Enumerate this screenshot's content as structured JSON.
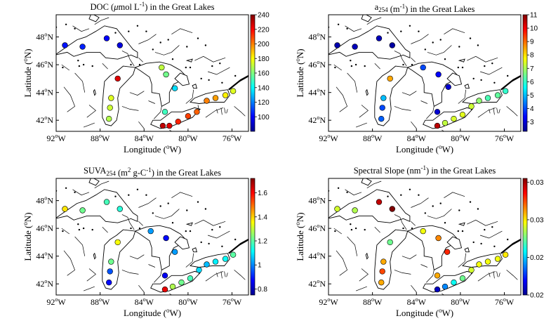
{
  "figure": {
    "panels": [
      {
        "id": "doc",
        "title_main": "DOC (",
        "title_mu": "μ",
        "title_rest": "mol L",
        "title_sup": "-1",
        "title_end": ") in the Great Lakes",
        "colorbar": {
          "min": 80,
          "max": 240,
          "ticks": [
            "240",
            "220",
            "200",
            "180",
            "160",
            "140",
            "120",
            "100"
          ],
          "tick_values": [
            240,
            220,
            200,
            180,
            160,
            140,
            120,
            100
          ]
        },
        "points": [
          {
            "lon": -91.2,
            "lat": 47.4,
            "value": 103
          },
          {
            "lon": -89.6,
            "lat": 47.3,
            "value": 105
          },
          {
            "lon": -87.4,
            "lat": 47.9,
            "value": 100
          },
          {
            "lon": -86.2,
            "lat": 47.4,
            "value": 95
          },
          {
            "lon": -82.4,
            "lat": 45.8,
            "value": 170
          },
          {
            "lon": -82.0,
            "lat": 45.3,
            "value": 158
          },
          {
            "lon": -86.4,
            "lat": 45.0,
            "value": 225
          },
          {
            "lon": -87.0,
            "lat": 43.6,
            "value": 175
          },
          {
            "lon": -87.1,
            "lat": 42.9,
            "value": 172
          },
          {
            "lon": -87.2,
            "lat": 42.1,
            "value": 168
          },
          {
            "lon": -81.2,
            "lat": 44.3,
            "value": 135
          },
          {
            "lon": -82.1,
            "lat": 42.6,
            "value": 150
          },
          {
            "lon": -82.3,
            "lat": 41.6,
            "value": 230
          },
          {
            "lon": -81.7,
            "lat": 41.6,
            "value": 225
          },
          {
            "lon": -80.9,
            "lat": 41.9,
            "value": 215
          },
          {
            "lon": -80.0,
            "lat": 42.3,
            "value": 210
          },
          {
            "lon": -79.2,
            "lat": 42.6,
            "value": 205
          },
          {
            "lon": -78.3,
            "lat": 43.4,
            "value": 200
          },
          {
            "lon": -77.5,
            "lat": 43.6,
            "value": 195
          },
          {
            "lon": -76.6,
            "lat": 43.8,
            "value": 182
          },
          {
            "lon": -75.9,
            "lat": 44.1,
            "value": 175
          }
        ]
      },
      {
        "id": "a254",
        "title_main": "a",
        "title_sub": "254",
        "title_rest": " (m",
        "title_sup": "-1",
        "title_end": ") in the Great Lakes",
        "colorbar": {
          "min": 2.3,
          "max": 11,
          "ticks": [
            "11",
            "10",
            "9",
            "8",
            "7",
            "6",
            "5",
            "4",
            "3"
          ],
          "tick_values": [
            11,
            10,
            9,
            8,
            7,
            6,
            5,
            4,
            3
          ]
        },
        "points": [
          {
            "lon": -91.2,
            "lat": 47.4,
            "value": 2.7
          },
          {
            "lon": -89.6,
            "lat": 47.3,
            "value": 2.8
          },
          {
            "lon": -87.4,
            "lat": 47.9,
            "value": 2.8
          },
          {
            "lon": -86.2,
            "lat": 47.4,
            "value": 2.6
          },
          {
            "lon": -83.4,
            "lat": 45.8,
            "value": 4.0
          },
          {
            "lon": -82.0,
            "lat": 45.3,
            "value": 3.4
          },
          {
            "lon": -86.4,
            "lat": 45.0,
            "value": 8.5
          },
          {
            "lon": -87.0,
            "lat": 43.6,
            "value": 5.0
          },
          {
            "lon": -87.1,
            "lat": 42.9,
            "value": 4.0
          },
          {
            "lon": -87.2,
            "lat": 42.1,
            "value": 4.2
          },
          {
            "lon": -81.1,
            "lat": 44.4,
            "value": 3.0
          },
          {
            "lon": -82.1,
            "lat": 42.6,
            "value": 3.0
          },
          {
            "lon": -82.1,
            "lat": 41.6,
            "value": 10.5
          },
          {
            "lon": -81.4,
            "lat": 41.8,
            "value": 7.2
          },
          {
            "lon": -80.6,
            "lat": 42.1,
            "value": 7.4
          },
          {
            "lon": -79.8,
            "lat": 42.4,
            "value": 7.5
          },
          {
            "lon": -79.0,
            "lat": 43.0,
            "value": 7.3
          },
          {
            "lon": -78.3,
            "lat": 43.4,
            "value": 6.8
          },
          {
            "lon": -77.5,
            "lat": 43.6,
            "value": 6.2
          },
          {
            "lon": -76.6,
            "lat": 43.8,
            "value": 6.4
          },
          {
            "lon": -75.9,
            "lat": 44.1,
            "value": 6.0
          }
        ]
      },
      {
        "id": "suva",
        "title_main": "SUVA",
        "title_sub": "254",
        "title_rest": " (m",
        "title_sup": "2",
        "title_end": " g-C",
        "title_sup2": "-1",
        "title_end2": ") in the Great Lakes",
        "colorbar": {
          "min": 0.75,
          "max": 1.72,
          "ticks": [
            "1.6",
            "1.4",
            "1.2",
            "1",
            "0.8"
          ],
          "tick_values": [
            1.6,
            1.4,
            1.2,
            1.0,
            0.8
          ]
        },
        "points": [
          {
            "lon": -91.2,
            "lat": 47.4,
            "value": 1.38
          },
          {
            "lon": -89.6,
            "lat": 47.3,
            "value": 1.22
          },
          {
            "lon": -87.4,
            "lat": 47.9,
            "value": 1.18
          },
          {
            "lon": -86.2,
            "lat": 47.4,
            "value": 1.15
          },
          {
            "lon": -83.4,
            "lat": 45.8,
            "value": 1.02
          },
          {
            "lon": -82.0,
            "lat": 45.3,
            "value": 0.88
          },
          {
            "lon": -86.4,
            "lat": 45.0,
            "value": 1.35
          },
          {
            "lon": -87.0,
            "lat": 43.6,
            "value": 1.22
          },
          {
            "lon": -87.1,
            "lat": 42.9,
            "value": 0.95
          },
          {
            "lon": -87.2,
            "lat": 42.1,
            "value": 0.88
          },
          {
            "lon": -81.2,
            "lat": 44.3,
            "value": 1.02
          },
          {
            "lon": -82.1,
            "lat": 42.6,
            "value": 0.86
          },
          {
            "lon": -82.1,
            "lat": 41.6,
            "value": 1.62
          },
          {
            "lon": -81.4,
            "lat": 41.8,
            "value": 1.28
          },
          {
            "lon": -80.6,
            "lat": 42.1,
            "value": 1.22
          },
          {
            "lon": -79.8,
            "lat": 42.4,
            "value": 1.18
          },
          {
            "lon": -79.0,
            "lat": 43.0,
            "value": 1.08
          },
          {
            "lon": -78.3,
            "lat": 43.4,
            "value": 1.05
          },
          {
            "lon": -77.5,
            "lat": 43.6,
            "value": 1.1
          },
          {
            "lon": -76.6,
            "lat": 43.8,
            "value": 1.12
          },
          {
            "lon": -75.9,
            "lat": 44.1,
            "value": 1.2
          }
        ]
      },
      {
        "id": "slope",
        "title_main": "Spectral Slope (nm",
        "title_sup": "-1",
        "title_end": ") in the Great Lakes",
        "colorbar": {
          "min": 0.02,
          "max": 0.0355,
          "ticks": [
            "0.035",
            "0.03",
            "0.025",
            "0.02"
          ],
          "tick_values": [
            0.035,
            0.03,
            0.025,
            0.02
          ]
        },
        "points": [
          {
            "lon": -91.2,
            "lat": 47.4,
            "value": 0.029
          },
          {
            "lon": -89.6,
            "lat": 47.3,
            "value": 0.0285
          },
          {
            "lon": -87.4,
            "lat": 47.9,
            "value": 0.0345
          },
          {
            "lon": -86.2,
            "lat": 47.4,
            "value": 0.0355
          },
          {
            "lon": -83.4,
            "lat": 45.8,
            "value": 0.0295
          },
          {
            "lon": -82.0,
            "lat": 45.3,
            "value": 0.0315
          },
          {
            "lon": -86.4,
            "lat": 45.0,
            "value": 0.0275
          },
          {
            "lon": -87.0,
            "lat": 43.6,
            "value": 0.031
          },
          {
            "lon": -87.1,
            "lat": 42.9,
            "value": 0.0325
          },
          {
            "lon": -87.2,
            "lat": 42.1,
            "value": 0.031
          },
          {
            "lon": -81.2,
            "lat": 44.3,
            "value": 0.033
          },
          {
            "lon": -82.1,
            "lat": 42.6,
            "value": 0.031
          },
          {
            "lon": -82.1,
            "lat": 41.6,
            "value": 0.021
          },
          {
            "lon": -81.4,
            "lat": 41.8,
            "value": 0.024
          },
          {
            "lon": -80.6,
            "lat": 42.1,
            "value": 0.026
          },
          {
            "lon": -79.8,
            "lat": 42.4,
            "value": 0.0275
          },
          {
            "lon": -79.0,
            "lat": 43.0,
            "value": 0.029
          },
          {
            "lon": -78.3,
            "lat": 43.4,
            "value": 0.0295
          },
          {
            "lon": -77.5,
            "lat": 43.6,
            "value": 0.0295
          },
          {
            "lon": -76.6,
            "lat": 43.8,
            "value": 0.0295
          },
          {
            "lon": -75.9,
            "lat": 44.1,
            "value": 0.03
          }
        ]
      }
    ],
    "axes": {
      "lon_ticks": [
        "92",
        "88",
        "84",
        "80",
        "76"
      ],
      "lon_suffix": "W",
      "lat_ticks": [
        "48",
        "46",
        "44",
        "42"
      ],
      "lat_suffix": "N",
      "degree": "o",
      "xlabel_main": "Longitude (",
      "xlabel_sup": "o",
      "xlabel_end": "W)",
      "ylabel_main": "Latitude (",
      "ylabel_sup": "o",
      "ylabel_end": "N)",
      "lon_range": [
        -92,
        -74.5
      ],
      "lat_range": [
        41.2,
        49.6
      ]
    }
  }
}
